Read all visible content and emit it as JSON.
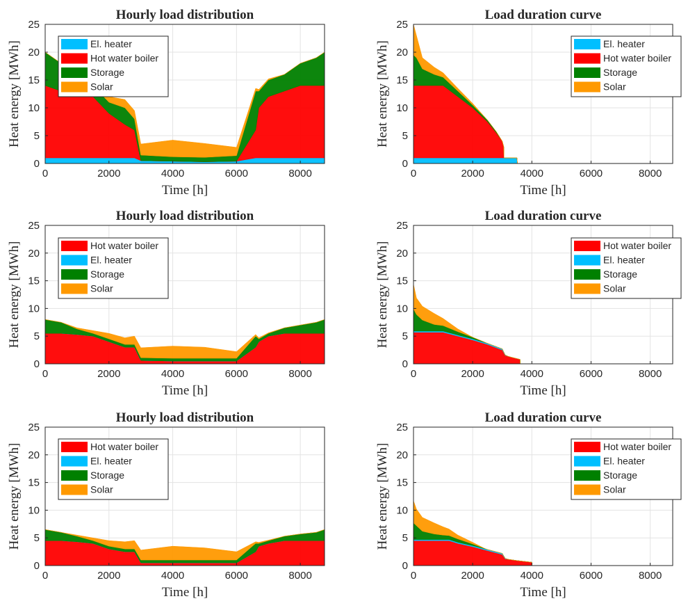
{
  "chart_data": [
    {
      "type": "area",
      "title": "Hourly load distribution",
      "xlabel": "Time [h]",
      "ylabel": "Heat energy [MWh]",
      "xlim": [
        0,
        8760
      ],
      "ylim": [
        0,
        25
      ],
      "xticks": [
        0,
        2000,
        4000,
        6000,
        8000
      ],
      "yticks": [
        0,
        5,
        10,
        15,
        20,
        25
      ],
      "grid": true,
      "legend_position": "top-left",
      "legend": [
        "El. heater",
        "Hot water boiler",
        "Storage",
        "Solar"
      ],
      "series": [
        {
          "name": "El. heater",
          "color": "#00BFFF",
          "x": [
            0,
            500,
            1000,
            1500,
            2000,
            2500,
            2800,
            3000,
            4000,
            5000,
            6000,
            6600,
            6700,
            7000,
            7500,
            8000,
            8500,
            8760
          ],
          "values": [
            1,
            1,
            1,
            1,
            1,
            1,
            1,
            0.5,
            0.4,
            0.3,
            0.4,
            1,
            1,
            1,
            1,
            1,
            1,
            1
          ]
        },
        {
          "name": "Hot water boiler",
          "color": "#FF0000",
          "x": [
            0,
            500,
            1000,
            1500,
            2000,
            2500,
            2800,
            3000,
            4000,
            5000,
            6000,
            6600,
            6700,
            7000,
            7500,
            8000,
            8500,
            8760
          ],
          "values": [
            13,
            12,
            13,
            11,
            8,
            6,
            5,
            0,
            0,
            0,
            0,
            5,
            9,
            11,
            12,
            13,
            13,
            13
          ]
        },
        {
          "name": "Storage",
          "color": "#008000",
          "x": [
            0,
            500,
            1000,
            1500,
            2000,
            2500,
            2800,
            3000,
            4000,
            5000,
            6000,
            6600,
            6700,
            7000,
            7500,
            8000,
            8500,
            8760
          ],
          "values": [
            6,
            5,
            3,
            2,
            2,
            3,
            2,
            1,
            0.8,
            0.8,
            1,
            7,
            3,
            3,
            3,
            4,
            5,
            6
          ]
        },
        {
          "name": "Solar",
          "color": "#FF9900",
          "x": [
            0,
            500,
            1000,
            1500,
            2000,
            2500,
            2800,
            3000,
            4000,
            5000,
            6000,
            6600,
            6700,
            7000,
            7500,
            8000,
            8500,
            8760
          ],
          "values": [
            0,
            0,
            0.2,
            0.5,
            1,
            1.5,
            1.5,
            2,
            3,
            2.5,
            1.5,
            0.5,
            0.3,
            0.2,
            0,
            0,
            0,
            0
          ]
        }
      ]
    },
    {
      "type": "area",
      "title": "Load duration curve",
      "xlabel": "Time [h]",
      "ylabel": "Heat energy [MWh]",
      "xlim": [
        0,
        8760
      ],
      "ylim": [
        0,
        25
      ],
      "xticks": [
        0,
        2000,
        4000,
        6000,
        8000
      ],
      "yticks": [
        0,
        5,
        10,
        15,
        20,
        25
      ],
      "grid": true,
      "legend_position": "top-right",
      "legend": [
        "El. heater",
        "Hot water boiler",
        "Storage",
        "Solar"
      ],
      "series": [
        {
          "name": "El. heater",
          "color": "#00BFFF",
          "x": [
            0,
            3500,
            3510
          ],
          "values": [
            1,
            1,
            0
          ]
        },
        {
          "name": "Hot water boiler",
          "color": "#FF0000",
          "x": [
            0,
            1000,
            1500,
            2000,
            2500,
            2800,
            3000,
            3050,
            3060
          ],
          "values": [
            13,
            13,
            11,
            9,
            6.5,
            4.5,
            3,
            2,
            0
          ]
        },
        {
          "name": "Storage",
          "color": "#008000",
          "x": [
            0,
            100,
            300,
            700,
            1000,
            1500,
            2000,
            2500,
            2800,
            3000
          ],
          "values": [
            5.5,
            5,
            3,
            2,
            1.5,
            1,
            0.5,
            0.3,
            0.2,
            0
          ]
        },
        {
          "name": "Solar",
          "color": "#FF9900",
          "x": [
            0,
            100,
            300,
            700,
            1000,
            1500,
            2000,
            2500
          ],
          "values": [
            5.5,
            4,
            2,
            1.3,
            0.8,
            0.5,
            0.3,
            0
          ]
        }
      ]
    },
    {
      "type": "area",
      "title": "Hourly load distribution",
      "xlabel": "Time [h]",
      "ylabel": "Heat energy [MWh]",
      "xlim": [
        0,
        8760
      ],
      "ylim": [
        0,
        25
      ],
      "xticks": [
        0,
        2000,
        4000,
        6000,
        8000
      ],
      "yticks": [
        0,
        5,
        10,
        15,
        20,
        25
      ],
      "grid": true,
      "legend_position": "top-left",
      "legend": [
        "Hot water boiler",
        "El. heater",
        "Storage",
        "Solar"
      ],
      "series": [
        {
          "name": "Hot water boiler",
          "color": "#FF0000",
          "x": [
            0,
            500,
            1000,
            1500,
            2000,
            2500,
            2800,
            3000,
            4000,
            5000,
            6000,
            6600,
            6700,
            7000,
            7500,
            8000,
            8500,
            8760
          ],
          "values": [
            5.5,
            5.5,
            5.3,
            5,
            4,
            3,
            3,
            0.6,
            0.5,
            0.5,
            0.5,
            3,
            4,
            5,
            5.5,
            5.5,
            5.5,
            5.5
          ]
        },
        {
          "name": "El. heater",
          "color": "#00BFFF",
          "x": [
            0,
            8760
          ],
          "values": [
            0,
            0
          ]
        },
        {
          "name": "Storage",
          "color": "#008000",
          "x": [
            0,
            500,
            1000,
            1500,
            2000,
            2500,
            2800,
            3000,
            4000,
            5000,
            6000,
            6600,
            6700,
            7000,
            7500,
            8000,
            8500,
            8760
          ],
          "values": [
            2.5,
            2,
            1,
            0.5,
            0.5,
            0.5,
            0.5,
            0.5,
            0.5,
            0.5,
            0.5,
            2,
            0.5,
            0.5,
            1,
            1.5,
            2,
            2.5
          ]
        },
        {
          "name": "Solar",
          "color": "#FF9900",
          "x": [
            0,
            500,
            1000,
            1500,
            2000,
            2500,
            2800,
            3000,
            4000,
            5000,
            6000,
            6600,
            6700,
            7000,
            7500,
            8000,
            8500,
            8760
          ],
          "values": [
            0,
            0,
            0.2,
            0.5,
            1,
            1.2,
            1.5,
            1.8,
            2.2,
            2,
            1.2,
            0.3,
            0.2,
            0.1,
            0,
            0,
            0,
            0
          ]
        }
      ]
    },
    {
      "type": "area",
      "title": "Load duration curve",
      "xlabel": "Time [h]",
      "ylabel": "Heat energy [MWh]",
      "xlim": [
        0,
        8760
      ],
      "ylim": [
        0,
        25
      ],
      "xticks": [
        0,
        2000,
        4000,
        6000,
        8000
      ],
      "yticks": [
        0,
        5,
        10,
        15,
        20,
        25
      ],
      "grid": true,
      "legend_position": "top-right",
      "legend": [
        "Hot water boiler",
        "El. heater",
        "Storage",
        "Solar"
      ],
      "series": [
        {
          "name": "Hot water boiler",
          "color": "#FF0000",
          "x": [
            0,
            1000,
            1500,
            2000,
            2500,
            3000,
            3100,
            3300,
            3600,
            3610
          ],
          "values": [
            5.7,
            5.7,
            5,
            4.3,
            3.5,
            2.5,
            1.5,
            1.2,
            0.8,
            0
          ]
        },
        {
          "name": "El. heater",
          "color": "#00BFFF",
          "x": [
            0,
            1000,
            2000,
            3000,
            3200
          ],
          "values": [
            0.2,
            0.2,
            0.2,
            0.2,
            0
          ]
        },
        {
          "name": "Storage",
          "color": "#008000",
          "x": [
            0,
            100,
            300,
            700,
            1000,
            1500,
            2000,
            2500
          ],
          "values": [
            4,
            3,
            2,
            1.2,
            1,
            0.6,
            0.3,
            0
          ]
        },
        {
          "name": "Solar",
          "color": "#FF9900",
          "x": [
            0,
            100,
            300,
            700,
            1000,
            1500,
            2000
          ],
          "values": [
            4.5,
            3,
            2.5,
            2,
            1.3,
            0.5,
            0
          ]
        }
      ]
    },
    {
      "type": "area",
      "title": "Hourly load distribution",
      "xlabel": "Time [h]",
      "ylabel": "Heat energy [MWh]",
      "xlim": [
        0,
        8760
      ],
      "ylim": [
        0,
        25
      ],
      "xticks": [
        0,
        2000,
        4000,
        6000,
        8000
      ],
      "yticks": [
        0,
        5,
        10,
        15,
        20,
        25
      ],
      "grid": true,
      "legend_position": "top-left",
      "legend": [
        "Hot water boiler",
        "El. heater",
        "Storage",
        "Solar"
      ],
      "series": [
        {
          "name": "Hot water boiler",
          "color": "#FF0000",
          "x": [
            0,
            500,
            1000,
            1500,
            2000,
            2500,
            2800,
            3000,
            4000,
            5000,
            6000,
            6600,
            6700,
            7000,
            7500,
            8000,
            8500,
            8760
          ],
          "values": [
            4.5,
            4.5,
            4.3,
            4,
            3,
            2.5,
            2.5,
            0.5,
            0.5,
            0.5,
            0.5,
            2.5,
            3.5,
            4,
            4.5,
            4.5,
            4.5,
            4.5
          ]
        },
        {
          "name": "El. heater",
          "color": "#00BFFF",
          "x": [
            0,
            8760
          ],
          "values": [
            0,
            0
          ]
        },
        {
          "name": "Storage",
          "color": "#008000",
          "x": [
            0,
            500,
            1000,
            1500,
            2000,
            2500,
            2800,
            3000,
            4000,
            5000,
            6000,
            6600,
            6700,
            7000,
            7500,
            8000,
            8500,
            8760
          ],
          "values": [
            2,
            1.5,
            1,
            0.5,
            0.5,
            0.5,
            0.5,
            0.5,
            0.5,
            0.5,
            0.5,
            1.5,
            0.5,
            0.5,
            0.8,
            1.2,
            1.5,
            2
          ]
        },
        {
          "name": "Solar",
          "color": "#FF9900",
          "x": [
            0,
            500,
            1000,
            1500,
            2000,
            2500,
            2800,
            3000,
            4000,
            5000,
            6000,
            6600,
            6700,
            7000,
            7500,
            8000,
            8500,
            8760
          ],
          "values": [
            0,
            0,
            0.2,
            0.5,
            1,
            1.3,
            1.5,
            1.8,
            2.5,
            2.2,
            1.5,
            0.3,
            0.2,
            0.1,
            0,
            0,
            0,
            0
          ]
        }
      ]
    },
    {
      "type": "area",
      "title": "Load duration curve",
      "xlabel": "Time [h]",
      "ylabel": "Heat energy [MWh]",
      "xlim": [
        0,
        8760
      ],
      "ylim": [
        0,
        25
      ],
      "xticks": [
        0,
        2000,
        4000,
        6000,
        8000
      ],
      "yticks": [
        0,
        5,
        10,
        15,
        20,
        25
      ],
      "grid": true,
      "legend_position": "top-right",
      "legend": [
        "Hot water boiler",
        "El. heater",
        "Storage",
        "Solar"
      ],
      "series": [
        {
          "name": "Hot water boiler",
          "color": "#FF0000",
          "x": [
            0,
            1200,
            1500,
            2000,
            2500,
            3000,
            3100,
            3500,
            4000,
            4010
          ],
          "values": [
            4.5,
            4.5,
            4,
            3.4,
            2.7,
            2,
            1.2,
            0.9,
            0.6,
            0
          ]
        },
        {
          "name": "El. heater",
          "color": "#00BFFF",
          "x": [
            0,
            1000,
            2000,
            3000,
            3200
          ],
          "values": [
            0.2,
            0.2,
            0.2,
            0.2,
            0
          ]
        },
        {
          "name": "Storage",
          "color": "#008000",
          "x": [
            0,
            100,
            300,
            700,
            1000,
            1500,
            2000,
            2500
          ],
          "values": [
            3,
            2.5,
            1.5,
            1,
            0.8,
            0.6,
            0.3,
            0
          ]
        },
        {
          "name": "Solar",
          "color": "#FF9900",
          "x": [
            0,
            100,
            300,
            700,
            1000,
            1500,
            2000,
            2400
          ],
          "values": [
            4,
            3,
            2.5,
            2,
            1.5,
            0.7,
            0.3,
            0
          ]
        }
      ]
    }
  ]
}
